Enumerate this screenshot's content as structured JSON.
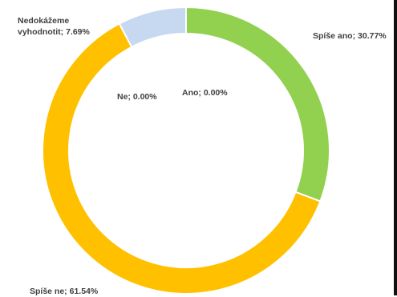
{
  "chart_data": {
    "type": "pie",
    "variant": "doughnut",
    "title": "",
    "slices": [
      {
        "label": "Spíše ano; 30.77%",
        "name": "Spíše ano",
        "value": 30.77,
        "color": "#92D050"
      },
      {
        "label": "Spíše ne; 61.54%",
        "name": "Spíše ne",
        "value": 61.54,
        "color": "#FFC000"
      },
      {
        "label": "Nedokážeme vyhodnotit; 7.69%",
        "name": "Nedokážeme vyhodnotit",
        "value": 7.69,
        "color": "#C6D9F1"
      },
      {
        "label": "Ne; 0.00%",
        "name": "Ne",
        "value": 0.0,
        "color": "#4F81BD"
      },
      {
        "label": "Ano; 0.00%",
        "name": "Ano",
        "value": 0.0,
        "color": "#1F4E79"
      }
    ],
    "start_angle_deg": 0,
    "direction": "clockwise",
    "legend": "none"
  }
}
